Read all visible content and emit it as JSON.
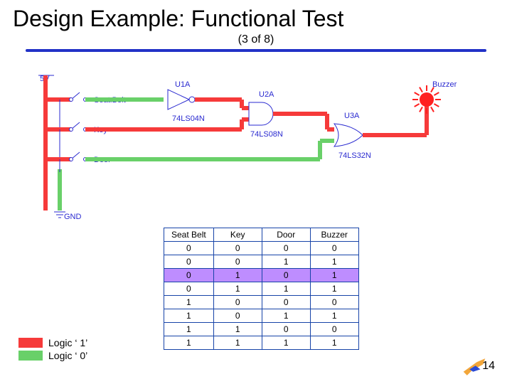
{
  "title": "Design Example: Functional Test",
  "subtitle": "(3 of 8)",
  "page_number": "14",
  "colors": {
    "logic1": "#f63a3a",
    "logic0": "#69d069",
    "rule": "#2232c7",
    "label": "#2a2ad0",
    "table_border": "#1744a8",
    "highlight_row": "#be8dff",
    "buzzer_on": "#ff2020",
    "plane_body": "#f2a63a",
    "plane_wing": "#2a4bd6"
  },
  "circuit": {
    "rail_label": "5V",
    "gnd_label": "GND",
    "inputs": [
      {
        "name": "Seat.Belt",
        "ic": "U1A",
        "part": "74LS04N",
        "shape": "inverter"
      },
      {
        "name": "Key",
        "ic": "U2A",
        "part": "74LS08N",
        "shape": "and"
      },
      {
        "name": "Door",
        "ic": "U3A",
        "part": "74LS32N",
        "shape": "or"
      }
    ],
    "output_label": "Buzzer",
    "highlight_state": {
      "seatbelt": 0,
      "key": 1,
      "door": 0
    },
    "line_width": 6
  },
  "truth_table": {
    "columns": [
      "Seat Belt",
      "Key",
      "Door",
      "Buzzer"
    ],
    "rows": [
      [
        0,
        0,
        0,
        0
      ],
      [
        0,
        0,
        1,
        1
      ],
      [
        0,
        1,
        0,
        1
      ],
      [
        0,
        1,
        1,
        1
      ],
      [
        1,
        0,
        0,
        0
      ],
      [
        1,
        0,
        1,
        1
      ],
      [
        1,
        1,
        0,
        0
      ],
      [
        1,
        1,
        1,
        1
      ]
    ],
    "highlight_row_index": 2
  },
  "legend": {
    "items": [
      {
        "color_key": "logic1",
        "label": "Logic ‘ 1’"
      },
      {
        "color_key": "logic0",
        "label": "Logic ‘ 0’"
      }
    ]
  }
}
